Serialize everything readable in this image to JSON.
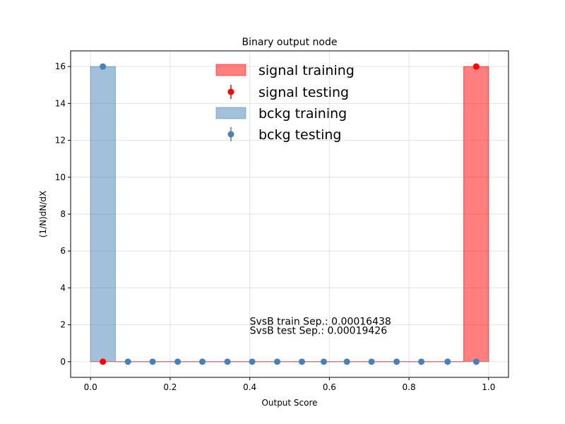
{
  "chart_data": {
    "type": "bar",
    "title": "Binary output node",
    "xlabel": "Output Score",
    "ylabel": "(1/N)dN/dX",
    "xlim": [
      -0.05,
      1.05
    ],
    "ylim": [
      -0.85,
      16.85
    ],
    "xticks": [
      0.0,
      0.2,
      0.4,
      0.6,
      0.8,
      1.0
    ],
    "xtick_labels": [
      "0.0",
      "0.2",
      "0.4",
      "0.6",
      "0.8",
      "1.0"
    ],
    "yticks": [
      0,
      2,
      4,
      6,
      8,
      10,
      12,
      14,
      16
    ],
    "ytick_labels": [
      "0",
      "2",
      "4",
      "6",
      "8",
      "10",
      "12",
      "14",
      "16"
    ],
    "grid": true,
    "legend_position": "top-center",
    "series": [
      {
        "name": "signal training",
        "kind": "hist",
        "color": "#ff0000",
        "bins": [
          {
            "x0": 0.0,
            "x1": 0.0625,
            "y": 0
          },
          {
            "x0": 0.9375,
            "x1": 1.0,
            "y": 16
          }
        ]
      },
      {
        "name": "signal testing",
        "kind": "points",
        "color": "#ff0000",
        "points": [
          {
            "x": 0.031,
            "y": 0
          },
          {
            "x": 0.969,
            "y": 16
          }
        ]
      },
      {
        "name": "bckg training",
        "kind": "hist",
        "color": "#4682b4",
        "bins": [
          {
            "x0": 0.0,
            "x1": 0.0625,
            "y": 16
          },
          {
            "x0": 0.9375,
            "x1": 1.0,
            "y": 0
          }
        ]
      },
      {
        "name": "bckg testing",
        "kind": "points",
        "color": "#4682b4",
        "points": [
          {
            "x": 0.031,
            "y": 16
          },
          {
            "x": 0.094,
            "y": 0
          },
          {
            "x": 0.156,
            "y": 0
          },
          {
            "x": 0.219,
            "y": 0
          },
          {
            "x": 0.281,
            "y": 0
          },
          {
            "x": 0.344,
            "y": 0
          },
          {
            "x": 0.406,
            "y": 0
          },
          {
            "x": 0.469,
            "y": 0
          },
          {
            "x": 0.531,
            "y": 0
          },
          {
            "x": 0.586,
            "y": 0
          },
          {
            "x": 0.644,
            "y": 0
          },
          {
            "x": 0.706,
            "y": 0
          },
          {
            "x": 0.769,
            "y": 0
          },
          {
            "x": 0.831,
            "y": 0
          },
          {
            "x": 0.897,
            "y": 0
          },
          {
            "x": 0.969,
            "y": 0
          }
        ]
      }
    ],
    "annotations": [
      {
        "text": "SvsB train Sep.: 0.00016438",
        "x": 0.4,
        "y": 2.0
      },
      {
        "text": "SvsB test Sep.: 0.00019426",
        "x": 0.4,
        "y": 1.5
      }
    ]
  }
}
